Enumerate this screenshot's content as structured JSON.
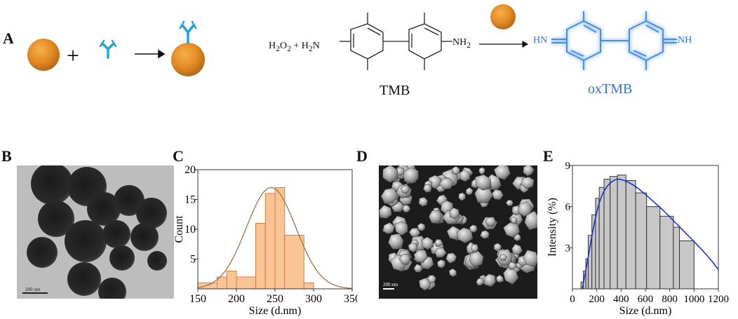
{
  "panels": {
    "A": "A",
    "B": "B",
    "C": "C",
    "D": "D",
    "E": "E"
  },
  "scheme": {
    "plus": "+",
    "reaction_left": "H",
    "h2o2": "H2O2",
    "tmb_label": "TMB",
    "oxtmb_label": "oxTMB",
    "hn_label": "HN",
    "nh_label": "NH"
  },
  "micrographs": {
    "tem_scale": "200 nm",
    "sem_scale": "200 nm"
  },
  "chart_data": [
    {
      "type": "bar",
      "panel": "C",
      "xlabel": "Size (d.nm)",
      "ylabel": "Count",
      "xlim": [
        150,
        350
      ],
      "ylim": [
        0,
        20
      ],
      "xticks": [
        150,
        200,
        250,
        300,
        350
      ],
      "yticks": [
        5,
        10,
        15,
        20
      ],
      "bins": [
        {
          "x0": 150,
          "x1": 175,
          "value": 1
        },
        {
          "x0": 175,
          "x1": 187.5,
          "value": 2
        },
        {
          "x0": 187.5,
          "x1": 200,
          "value": 3
        },
        {
          "x0": 200,
          "x1": 225,
          "value": 2
        },
        {
          "x0": 225,
          "x1": 237.5,
          "value": 11
        },
        {
          "x0": 237.5,
          "x1": 250,
          "value": 16
        },
        {
          "x0": 250,
          "x1": 262.5,
          "value": 17
        },
        {
          "x0": 262.5,
          "x1": 287.5,
          "value": 9
        },
        {
          "x0": 287.5,
          "x1": 300,
          "value": 1
        }
      ],
      "fit": {
        "type": "gaussian",
        "mean": 245,
        "sd": 32,
        "peak": 17
      },
      "bar_color": "#f9c596",
      "bar_edge": "#e07b39",
      "fit_color": "#a0704a"
    },
    {
      "type": "bar",
      "panel": "E",
      "xlabel": "Size (d.nm)",
      "ylabel": "Intensity (%)",
      "xlim": [
        0,
        1200
      ],
      "ylim": [
        0,
        9
      ],
      "xticks": [
        0,
        200,
        400,
        600,
        800,
        1000,
        1200
      ],
      "yticks": [
        3,
        6,
        9
      ],
      "bins": [
        {
          "x0": 70,
          "x1": 90,
          "value": 0.5
        },
        {
          "x0": 90,
          "x1": 110,
          "value": 1.3
        },
        {
          "x0": 110,
          "x1": 130,
          "value": 2.2
        },
        {
          "x0": 130,
          "x1": 160,
          "value": 3.9
        },
        {
          "x0": 160,
          "x1": 190,
          "value": 5.4
        },
        {
          "x0": 190,
          "x1": 220,
          "value": 6.6
        },
        {
          "x0": 220,
          "x1": 260,
          "value": 7.4
        },
        {
          "x0": 260,
          "x1": 310,
          "value": 8.0
        },
        {
          "x0": 310,
          "x1": 370,
          "value": 8.2
        },
        {
          "x0": 370,
          "x1": 440,
          "value": 8.3
        },
        {
          "x0": 440,
          "x1": 520,
          "value": 7.9
        },
        {
          "x0": 520,
          "x1": 610,
          "value": 7.0
        },
        {
          "x0": 610,
          "x1": 720,
          "value": 6.0
        },
        {
          "x0": 720,
          "x1": 830,
          "value": 5.3
        },
        {
          "x0": 830,
          "x1": 880,
          "value": 4.5
        },
        {
          "x0": 880,
          "x1": 1000,
          "value": 3.5
        }
      ],
      "fit": {
        "points": [
          [
            80,
            0
          ],
          [
            120,
            1.8
          ],
          [
            170,
            4.4
          ],
          [
            220,
            6.4
          ],
          [
            280,
            7.5
          ],
          [
            350,
            8.0
          ],
          [
            400,
            8.0
          ],
          [
            480,
            7.7
          ],
          [
            560,
            7.2
          ],
          [
            650,
            6.5
          ],
          [
            750,
            5.7
          ],
          [
            850,
            4.8
          ],
          [
            950,
            3.9
          ],
          [
            1050,
            3.0
          ],
          [
            1150,
            2.0
          ],
          [
            1200,
            1.4
          ]
        ]
      },
      "bar_color": "#c8c8c8",
      "bar_edge": "#333333",
      "fit_color": "#1a2fd8"
    }
  ]
}
